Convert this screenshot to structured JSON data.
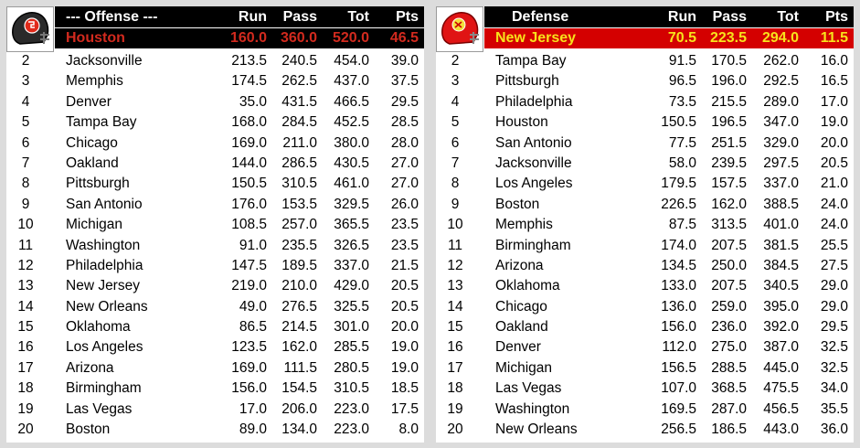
{
  "offense": {
    "header": {
      "title": "--- Offense ---",
      "run": "Run",
      "pass": "Pass",
      "tot": "Tot",
      "pts": "Pts"
    },
    "leader": {
      "team": "Houston",
      "run": "160.0",
      "pass": "360.0",
      "tot": "520.0",
      "pts": "46.5"
    },
    "rows": [
      {
        "rank": "2",
        "team": "Jacksonville",
        "run": "213.5",
        "pass": "240.5",
        "tot": "454.0",
        "pts": "39.0"
      },
      {
        "rank": "3",
        "team": "Memphis",
        "run": "174.5",
        "pass": "262.5",
        "tot": "437.0",
        "pts": "37.5"
      },
      {
        "rank": "4",
        "team": "Denver",
        "run": "35.0",
        "pass": "431.5",
        "tot": "466.5",
        "pts": "29.5"
      },
      {
        "rank": "5",
        "team": "Tampa Bay",
        "run": "168.0",
        "pass": "284.5",
        "tot": "452.5",
        "pts": "28.5"
      },
      {
        "rank": "6",
        "team": "Chicago",
        "run": "169.0",
        "pass": "211.0",
        "tot": "380.0",
        "pts": "28.0"
      },
      {
        "rank": "7",
        "team": "Oakland",
        "run": "144.0",
        "pass": "286.5",
        "tot": "430.5",
        "pts": "27.0"
      },
      {
        "rank": "8",
        "team": "Pittsburgh",
        "run": "150.5",
        "pass": "310.5",
        "tot": "461.0",
        "pts": "27.0"
      },
      {
        "rank": "9",
        "team": "San Antonio",
        "run": "176.0",
        "pass": "153.5",
        "tot": "329.5",
        "pts": "26.0"
      },
      {
        "rank": "10",
        "team": "Michigan",
        "run": "108.5",
        "pass": "257.0",
        "tot": "365.5",
        "pts": "23.5"
      },
      {
        "rank": "11",
        "team": "Washington",
        "run": "91.0",
        "pass": "235.5",
        "tot": "326.5",
        "pts": "23.5"
      },
      {
        "rank": "12",
        "team": "Philadelphia",
        "run": "147.5",
        "pass": "189.5",
        "tot": "337.0",
        "pts": "21.5"
      },
      {
        "rank": "13",
        "team": "New Jersey",
        "run": "219.0",
        "pass": "210.0",
        "tot": "429.0",
        "pts": "20.5"
      },
      {
        "rank": "14",
        "team": "New Orleans",
        "run": "49.0",
        "pass": "276.5",
        "tot": "325.5",
        "pts": "20.5"
      },
      {
        "rank": "15",
        "team": "Oklahoma",
        "run": "86.5",
        "pass": "214.5",
        "tot": "301.0",
        "pts": "20.0"
      },
      {
        "rank": "16",
        "team": "Los Angeles",
        "run": "123.5",
        "pass": "162.0",
        "tot": "285.5",
        "pts": "19.0"
      },
      {
        "rank": "17",
        "team": "Arizona",
        "run": "169.0",
        "pass": "111.5",
        "tot": "280.5",
        "pts": "19.0"
      },
      {
        "rank": "18",
        "team": "Birmingham",
        "run": "156.0",
        "pass": "154.5",
        "tot": "310.5",
        "pts": "18.5"
      },
      {
        "rank": "19",
        "team": "Las Vegas",
        "run": "17.0",
        "pass": "206.0",
        "tot": "223.0",
        "pts": "17.5"
      },
      {
        "rank": "20",
        "team": "Boston",
        "run": "89.0",
        "pass": "134.0",
        "tot": "223.0",
        "pts": "8.0"
      }
    ]
  },
  "defense": {
    "header": {
      "title": "Defense",
      "run": "Run",
      "pass": "Pass",
      "tot": "Tot",
      "pts": "Pts"
    },
    "leader": {
      "team": "New Jersey",
      "run": "70.5",
      "pass": "223.5",
      "tot": "294.0",
      "pts": "11.5"
    },
    "rows": [
      {
        "rank": "2",
        "team": "Tampa Bay",
        "run": "91.5",
        "pass": "170.5",
        "tot": "262.0",
        "pts": "16.0"
      },
      {
        "rank": "3",
        "team": "Pittsburgh",
        "run": "96.5",
        "pass": "196.0",
        "tot": "292.5",
        "pts": "16.5"
      },
      {
        "rank": "4",
        "team": "Philadelphia",
        "run": "73.5",
        "pass": "215.5",
        "tot": "289.0",
        "pts": "17.0"
      },
      {
        "rank": "5",
        "team": "Houston",
        "run": "150.5",
        "pass": "196.5",
        "tot": "347.0",
        "pts": "19.0"
      },
      {
        "rank": "6",
        "team": "San Antonio",
        "run": "77.5",
        "pass": "251.5",
        "tot": "329.0",
        "pts": "20.0"
      },
      {
        "rank": "7",
        "team": "Jacksonville",
        "run": "58.0",
        "pass": "239.5",
        "tot": "297.5",
        "pts": "20.5"
      },
      {
        "rank": "8",
        "team": "Los Angeles",
        "run": "179.5",
        "pass": "157.5",
        "tot": "337.0",
        "pts": "21.0"
      },
      {
        "rank": "9",
        "team": "Boston",
        "run": "226.5",
        "pass": "162.0",
        "tot": "388.5",
        "pts": "24.0"
      },
      {
        "rank": "10",
        "team": "Memphis",
        "run": "87.5",
        "pass": "313.5",
        "tot": "401.0",
        "pts": "24.0"
      },
      {
        "rank": "11",
        "team": "Birmingham",
        "run": "174.0",
        "pass": "207.5",
        "tot": "381.5",
        "pts": "25.5"
      },
      {
        "rank": "12",
        "team": "Arizona",
        "run": "134.5",
        "pass": "250.0",
        "tot": "384.5",
        "pts": "27.5"
      },
      {
        "rank": "13",
        "team": "Oklahoma",
        "run": "133.0",
        "pass": "207.5",
        "tot": "340.5",
        "pts": "29.0"
      },
      {
        "rank": "14",
        "team": "Chicago",
        "run": "136.0",
        "pass": "259.0",
        "tot": "395.0",
        "pts": "29.0"
      },
      {
        "rank": "15",
        "team": "Oakland",
        "run": "156.0",
        "pass": "236.0",
        "tot": "392.0",
        "pts": "29.5"
      },
      {
        "rank": "16",
        "team": "Denver",
        "run": "112.0",
        "pass": "275.0",
        "tot": "387.0",
        "pts": "32.5"
      },
      {
        "rank": "17",
        "team": "Michigan",
        "run": "156.5",
        "pass": "288.5",
        "tot": "445.0",
        "pts": "32.5"
      },
      {
        "rank": "18",
        "team": "Las Vegas",
        "run": "107.0",
        "pass": "368.5",
        "tot": "475.5",
        "pts": "34.0"
      },
      {
        "rank": "19",
        "team": "Washington",
        "run": "169.5",
        "pass": "287.0",
        "tot": "456.5",
        "pts": "35.5"
      },
      {
        "rank": "20",
        "team": "New Orleans",
        "run": "256.5",
        "pass": "186.5",
        "tot": "443.0",
        "pts": "36.0"
      }
    ]
  },
  "logos": {
    "offense_leader": "helmet-icon",
    "defense_leader": "helmet-icon"
  },
  "colors": {
    "offense_leader_bg": "#000000",
    "offense_leader_text": "#d22a1e",
    "defense_leader_bg": "#d40000",
    "defense_leader_text": "#f7e21b"
  }
}
